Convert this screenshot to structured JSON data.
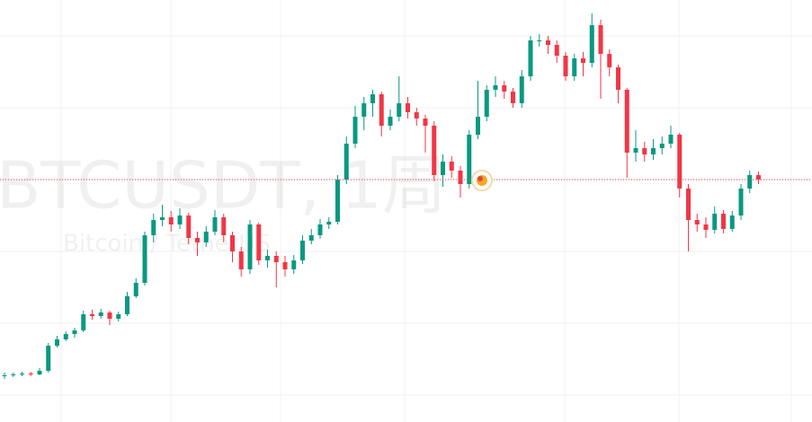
{
  "chart_data": {
    "type": "candlestick",
    "title": "BTCUSDT, 1周",
    "subtitle": "Bitcoin / TetherUS",
    "open": [
      51,
      52,
      53,
      54,
      53,
      57,
      85,
      92,
      98,
      102,
      120,
      118,
      122,
      115,
      120,
      140,
      155,
      208,
      225,
      228,
      220,
      230,
      205,
      200,
      212,
      228,
      208,
      190,
      170,
      220,
      180,
      185,
      178,
      170,
      180,
      202,
      208,
      220,
      223,
      270,
      310,
      340,
      355,
      365,
      330,
      340,
      355,
      345,
      338,
      330,
      275,
      290,
      280,
      265,
      320,
      340,
      370,
      375,
      368,
      355,
      385,
      425,
      425,
      420,
      408,
      385,
      405,
      400,
      442,
      410,
      395,
      370,
      300,
      305,
      298,
      305,
      310,
      320,
      260,
      225,
      220,
      214,
      232,
      215,
      230,
      260,
      275
    ],
    "high": [
      55,
      55,
      56,
      56,
      60,
      88,
      96,
      101,
      105,
      124,
      125,
      126,
      124,
      123,
      145,
      160,
      212,
      232,
      242,
      235,
      238,
      233,
      212,
      218,
      236,
      232,
      212,
      195,
      225,
      222,
      192,
      190,
      185,
      186,
      208,
      215,
      226,
      228,
      275,
      318,
      352,
      362,
      370,
      368,
      348,
      385,
      362,
      350,
      342,
      335,
      298,
      296,
      285,
      325,
      380,
      375,
      385,
      380,
      372,
      392,
      430,
      432,
      430,
      425,
      412,
      410,
      412,
      455,
      448,
      415,
      398,
      372,
      325,
      312,
      315,
      318,
      330,
      322,
      265,
      232,
      228,
      240,
      236,
      235,
      265,
      280,
      279
    ],
    "low": [
      48,
      50,
      51,
      51,
      52,
      55,
      83,
      90,
      94,
      100,
      114,
      115,
      108,
      112,
      118,
      138,
      152,
      200,
      218,
      212,
      215,
      198,
      185,
      195,
      208,
      200,
      178,
      162,
      165,
      175,
      172,
      150,
      162,
      165,
      176,
      198,
      204,
      215,
      220,
      265,
      305,
      325,
      340,
      318,
      325,
      335,
      338,
      330,
      300,
      268,
      262,
      272,
      250,
      260,
      315,
      335,
      362,
      360,
      350,
      350,
      380,
      418,
      410,
      400,
      380,
      380,
      385,
      395,
      360,
      385,
      355,
      272,
      290,
      290,
      292,
      298,
      305,
      250,
      190,
      212,
      205,
      210,
      210,
      212,
      225,
      255,
      265
    ],
    "close": [
      52,
      53,
      54,
      53,
      57,
      85,
      92,
      98,
      102,
      120,
      118,
      122,
      115,
      120,
      140,
      155,
      208,
      225,
      228,
      220,
      230,
      205,
      200,
      212,
      228,
      208,
      190,
      170,
      220,
      180,
      185,
      178,
      170,
      180,
      202,
      208,
      220,
      223,
      270,
      310,
      340,
      355,
      365,
      330,
      340,
      355,
      345,
      338,
      330,
      275,
      290,
      280,
      265,
      320,
      340,
      370,
      375,
      368,
      355,
      385,
      425,
      425,
      420,
      408,
      385,
      405,
      400,
      442,
      410,
      395,
      370,
      300,
      305,
      298,
      305,
      310,
      320,
      260,
      225,
      220,
      214,
      232,
      215,
      230,
      260,
      275,
      270
    ],
    "ylim": [
      0,
      470
    ],
    "up_color": "#089981",
    "down_color": "#f23645",
    "grid": true,
    "last_price_line": true
  }
}
